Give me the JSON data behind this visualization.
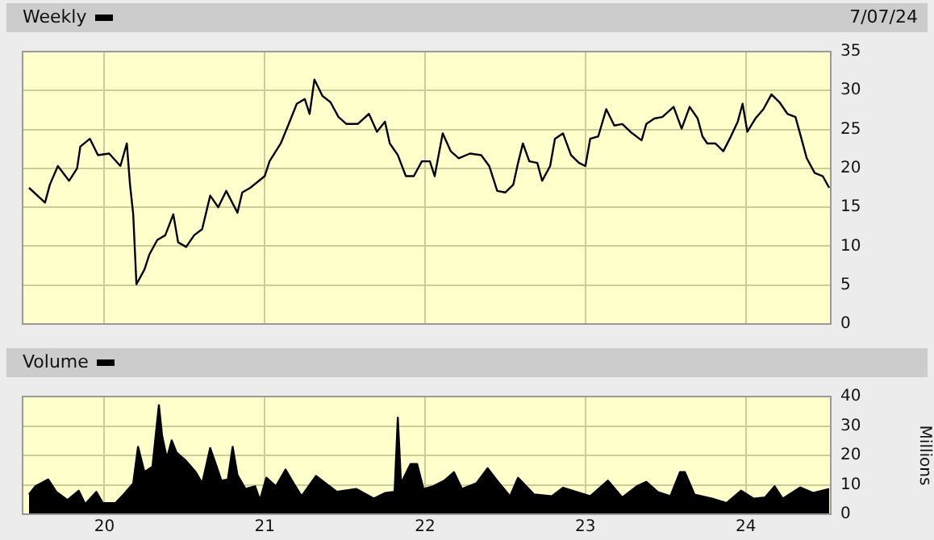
{
  "chart_data": [
    {
      "type": "line",
      "title": "Weekly",
      "annotations": [
        "7/07/24"
      ],
      "color": "#000000",
      "grid": true,
      "tick_labels": "y",
      "x": [
        2019.53,
        2019.63,
        2019.66,
        2019.71,
        2019.78,
        2019.83,
        2019.85,
        2019.91,
        2019.96,
        2020.03,
        2020.1,
        2020.14,
        2020.16,
        2020.18,
        2020.2,
        2020.25,
        2020.28,
        2020.33,
        2020.38,
        2020.43,
        2020.46,
        2020.51,
        2020.56,
        2020.61,
        2020.66,
        2020.71,
        2020.76,
        2020.83,
        2020.86,
        2020.91,
        2021.0,
        2021.03,
        2021.1,
        2021.15,
        2021.2,
        2021.25,
        2021.28,
        2021.31,
        2021.36,
        2021.41,
        2021.46,
        2021.51,
        2021.58,
        2021.65,
        2021.7,
        2021.75,
        2021.78,
        2021.83,
        2021.88,
        2021.93,
        2021.98,
        2022.03,
        2022.06,
        2022.11,
        2022.16,
        2022.21,
        2022.28,
        2022.35,
        2022.4,
        2022.45,
        2022.5,
        2022.55,
        2022.58,
        2022.61,
        2022.65,
        2022.7,
        2022.73,
        2022.78,
        2022.81,
        2022.86,
        2022.91,
        2022.96,
        2023.0,
        2023.03,
        2023.08,
        2023.13,
        2023.18,
        2023.23,
        2023.28,
        2023.35,
        2023.38,
        2023.43,
        2023.48,
        2023.55,
        2023.6,
        2023.65,
        2023.7,
        2023.73,
        2023.76,
        2023.81,
        2023.86,
        2023.9,
        2023.95,
        2023.98,
        2024.01,
        2024.06,
        2024.11,
        2024.16,
        2024.21,
        2024.26,
        2024.31,
        2024.35,
        2024.38,
        2024.43,
        2024.48,
        2024.52
      ],
      "values": [
        17.5,
        15.6,
        17.9,
        20.3,
        18.4,
        20.0,
        22.8,
        23.8,
        21.7,
        21.9,
        20.3,
        23.2,
        17.9,
        14.1,
        5.1,
        7.0,
        8.9,
        10.8,
        11.4,
        14.1,
        10.5,
        9.9,
        11.4,
        12.2,
        16.5,
        15.0,
        17.1,
        14.3,
        16.9,
        17.5,
        19.0,
        20.9,
        23.2,
        25.7,
        28.3,
        28.9,
        27.0,
        31.4,
        29.3,
        28.5,
        26.6,
        25.7,
        25.7,
        27.0,
        24.7,
        26.0,
        23.2,
        21.7,
        19.0,
        19.0,
        20.9,
        20.9,
        19.0,
        24.5,
        22.2,
        21.3,
        21.9,
        21.7,
        20.3,
        17.1,
        16.9,
        17.9,
        20.7,
        23.2,
        20.9,
        20.7,
        18.4,
        20.3,
        23.8,
        24.5,
        21.7,
        20.7,
        20.3,
        23.8,
        24.1,
        27.6,
        25.5,
        25.7,
        24.7,
        23.6,
        25.7,
        26.4,
        26.6,
        27.9,
        25.1,
        27.9,
        26.4,
        24.1,
        23.2,
        23.2,
        22.2,
        23.8,
        26.0,
        28.3,
        24.7,
        26.4,
        27.6,
        29.5,
        28.5,
        27.0,
        26.6,
        23.6,
        21.3,
        19.4,
        19.0,
        17.5
      ],
      "xlim": [
        2019.49,
        2024.53
      ],
      "xticks": [
        {
          "value": 2020,
          "label": null
        },
        {
          "value": 2021,
          "label": null
        },
        {
          "value": 2022,
          "label": null
        },
        {
          "value": 2023,
          "label": null
        },
        {
          "value": 2024,
          "label": null
        }
      ],
      "ylim": [
        0,
        35
      ],
      "yticks": [
        0,
        5,
        10,
        15,
        20,
        25,
        30,
        35
      ]
    },
    {
      "type": "area",
      "title": "Volume",
      "ylabel": "Millions",
      "color": "#000000",
      "grid": true,
      "x": [
        2019.53,
        2019.57,
        2019.65,
        2019.7,
        2019.77,
        2019.84,
        2019.88,
        2019.95,
        2019.99,
        2020.07,
        2020.12,
        2020.18,
        2020.21,
        2020.25,
        2020.3,
        2020.34,
        2020.36,
        2020.39,
        2020.42,
        2020.45,
        2020.51,
        2020.57,
        2020.61,
        2020.66,
        2020.7,
        2020.73,
        2020.77,
        2020.8,
        2020.83,
        2020.88,
        2020.94,
        2020.97,
        2021.01,
        2021.07,
        2021.13,
        2021.18,
        2021.23,
        2021.32,
        2021.38,
        2021.45,
        2021.57,
        2021.68,
        2021.75,
        2021.81,
        2021.83,
        2021.85,
        2021.91,
        2021.95,
        2021.99,
        2022.05,
        2022.12,
        2022.18,
        2022.23,
        2022.32,
        2022.39,
        2022.45,
        2022.53,
        2022.58,
        2022.68,
        2022.79,
        2022.86,
        2022.94,
        2023.03,
        2023.14,
        2023.23,
        2023.32,
        2023.38,
        2023.45,
        2023.53,
        2023.59,
        2023.62,
        2023.68,
        2023.79,
        2023.88,
        2023.97,
        2024.05,
        2024.12,
        2024.18,
        2024.23,
        2024.34,
        2024.42,
        2024.52
      ],
      "values": [
        6.7,
        9.5,
        11.8,
        7.6,
        4.8,
        8.0,
        3.4,
        7.6,
        3.8,
        3.8,
        6.7,
        10.5,
        22.9,
        14.3,
        16.2,
        37.1,
        26.7,
        19.0,
        25.1,
        21.0,
        18.1,
        14.3,
        10.5,
        22.5,
        16.2,
        11.4,
        11.8,
        22.9,
        13.3,
        8.6,
        9.5,
        4.8,
        12.4,
        9.5,
        15.2,
        10.5,
        6.1,
        13.0,
        10.5,
        7.6,
        8.6,
        5.3,
        7.2,
        7.6,
        32.8,
        10.5,
        17.1,
        17.1,
        8.6,
        9.5,
        11.4,
        14.3,
        8.6,
        10.5,
        15.6,
        11.4,
        6.1,
        12.4,
        6.7,
        6.1,
        9.0,
        7.6,
        6.1,
        11.4,
        5.7,
        9.5,
        11.0,
        7.6,
        6.1,
        14.3,
        14.3,
        6.7,
        5.3,
        3.8,
        8.0,
        5.3,
        5.7,
        9.5,
        5.3,
        9.1,
        7.2,
        8.6
      ],
      "xlim": [
        2019.49,
        2024.53
      ],
      "xticks": [
        {
          "value": 2020,
          "label": "20"
        },
        {
          "value": 2021,
          "label": "21"
        },
        {
          "value": 2022,
          "label": "22"
        },
        {
          "value": 2023,
          "label": "23"
        },
        {
          "value": 2024,
          "label": "24"
        }
      ],
      "ylim": [
        0,
        40
      ],
      "yticks": [
        0,
        10,
        20,
        30,
        40
      ]
    }
  ]
}
